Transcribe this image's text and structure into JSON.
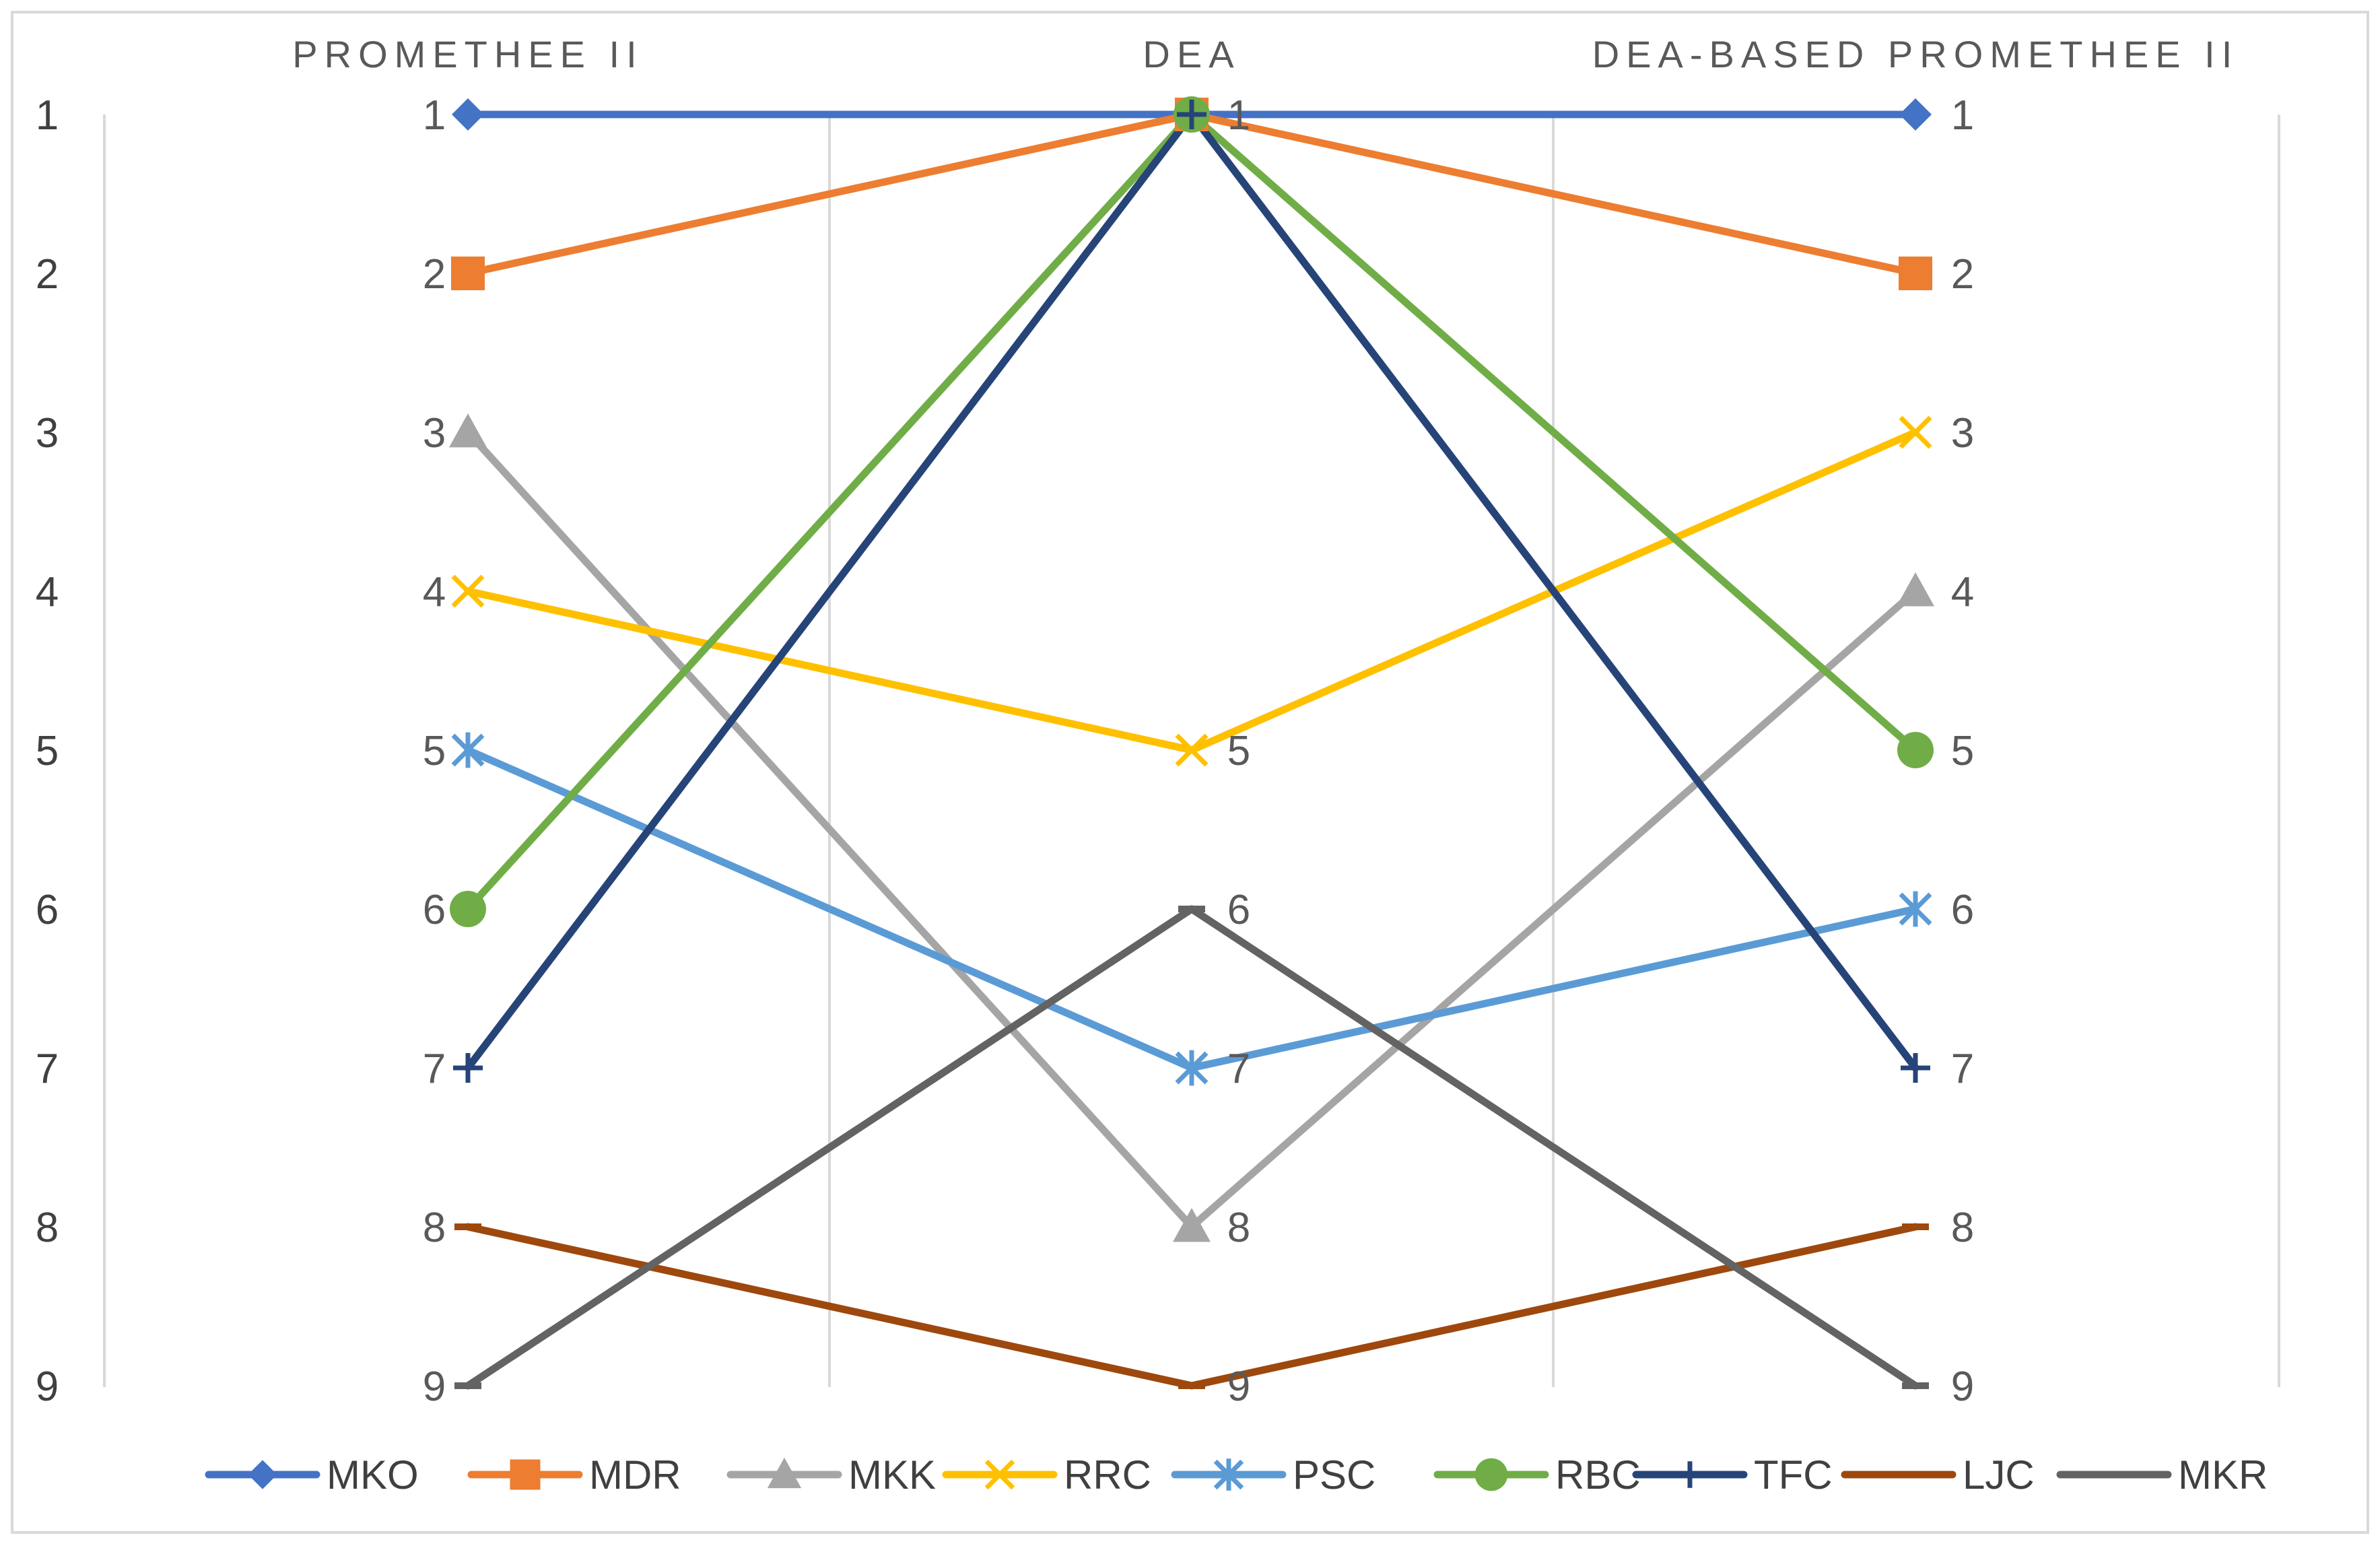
{
  "chart_data": {
    "type": "line",
    "title": "",
    "xlabel": "",
    "ylabel": "",
    "categories": [
      "PROMETHEE II",
      "DEA",
      "DEA-BASED PROMETHEE II"
    ],
    "ylim": [
      1,
      9
    ],
    "y_reversed": true,
    "yticks": [
      "1",
      "2",
      "3",
      "4",
      "5",
      "6",
      "7",
      "8",
      "9"
    ],
    "grid": "vertical",
    "legend_position": "bottom",
    "series": [
      {
        "name": "MKO",
        "values": [
          1,
          1,
          1
        ],
        "color": "#4472C4",
        "marker": "diamond"
      },
      {
        "name": "MDR",
        "values": [
          2,
          1,
          2
        ],
        "color": "#ED7D31",
        "marker": "square"
      },
      {
        "name": "MKK",
        "values": [
          3,
          8,
          4
        ],
        "color": "#A5A5A5",
        "marker": "triangle"
      },
      {
        "name": "RRC",
        "values": [
          4,
          5,
          3
        ],
        "color": "#FFC000",
        "marker": "x"
      },
      {
        "name": "PSC",
        "values": [
          5,
          7,
          6
        ],
        "color": "#5B9BD5",
        "marker": "star"
      },
      {
        "name": "RBC",
        "values": [
          6,
          1,
          5
        ],
        "color": "#70AD47",
        "marker": "circle"
      },
      {
        "name": "TFC",
        "values": [
          7,
          1,
          7
        ],
        "color": "#264478",
        "marker": "plus"
      },
      {
        "name": "LJC",
        "values": [
          8,
          9,
          8
        ],
        "color": "#9E480E",
        "marker": "dash"
      },
      {
        "name": "MKR",
        "values": [
          9,
          6,
          9
        ],
        "color": "#636363",
        "marker": "dash"
      }
    ],
    "data_labels": [
      [
        "1",
        "2",
        "3",
        "4",
        "5",
        "6",
        "7",
        "8",
        "9"
      ],
      [
        "1",
        "5",
        "6",
        "7",
        "8",
        "9"
      ],
      [
        "1",
        "2",
        "3",
        "4",
        "5",
        "6",
        "7",
        "8",
        "9"
      ]
    ]
  }
}
